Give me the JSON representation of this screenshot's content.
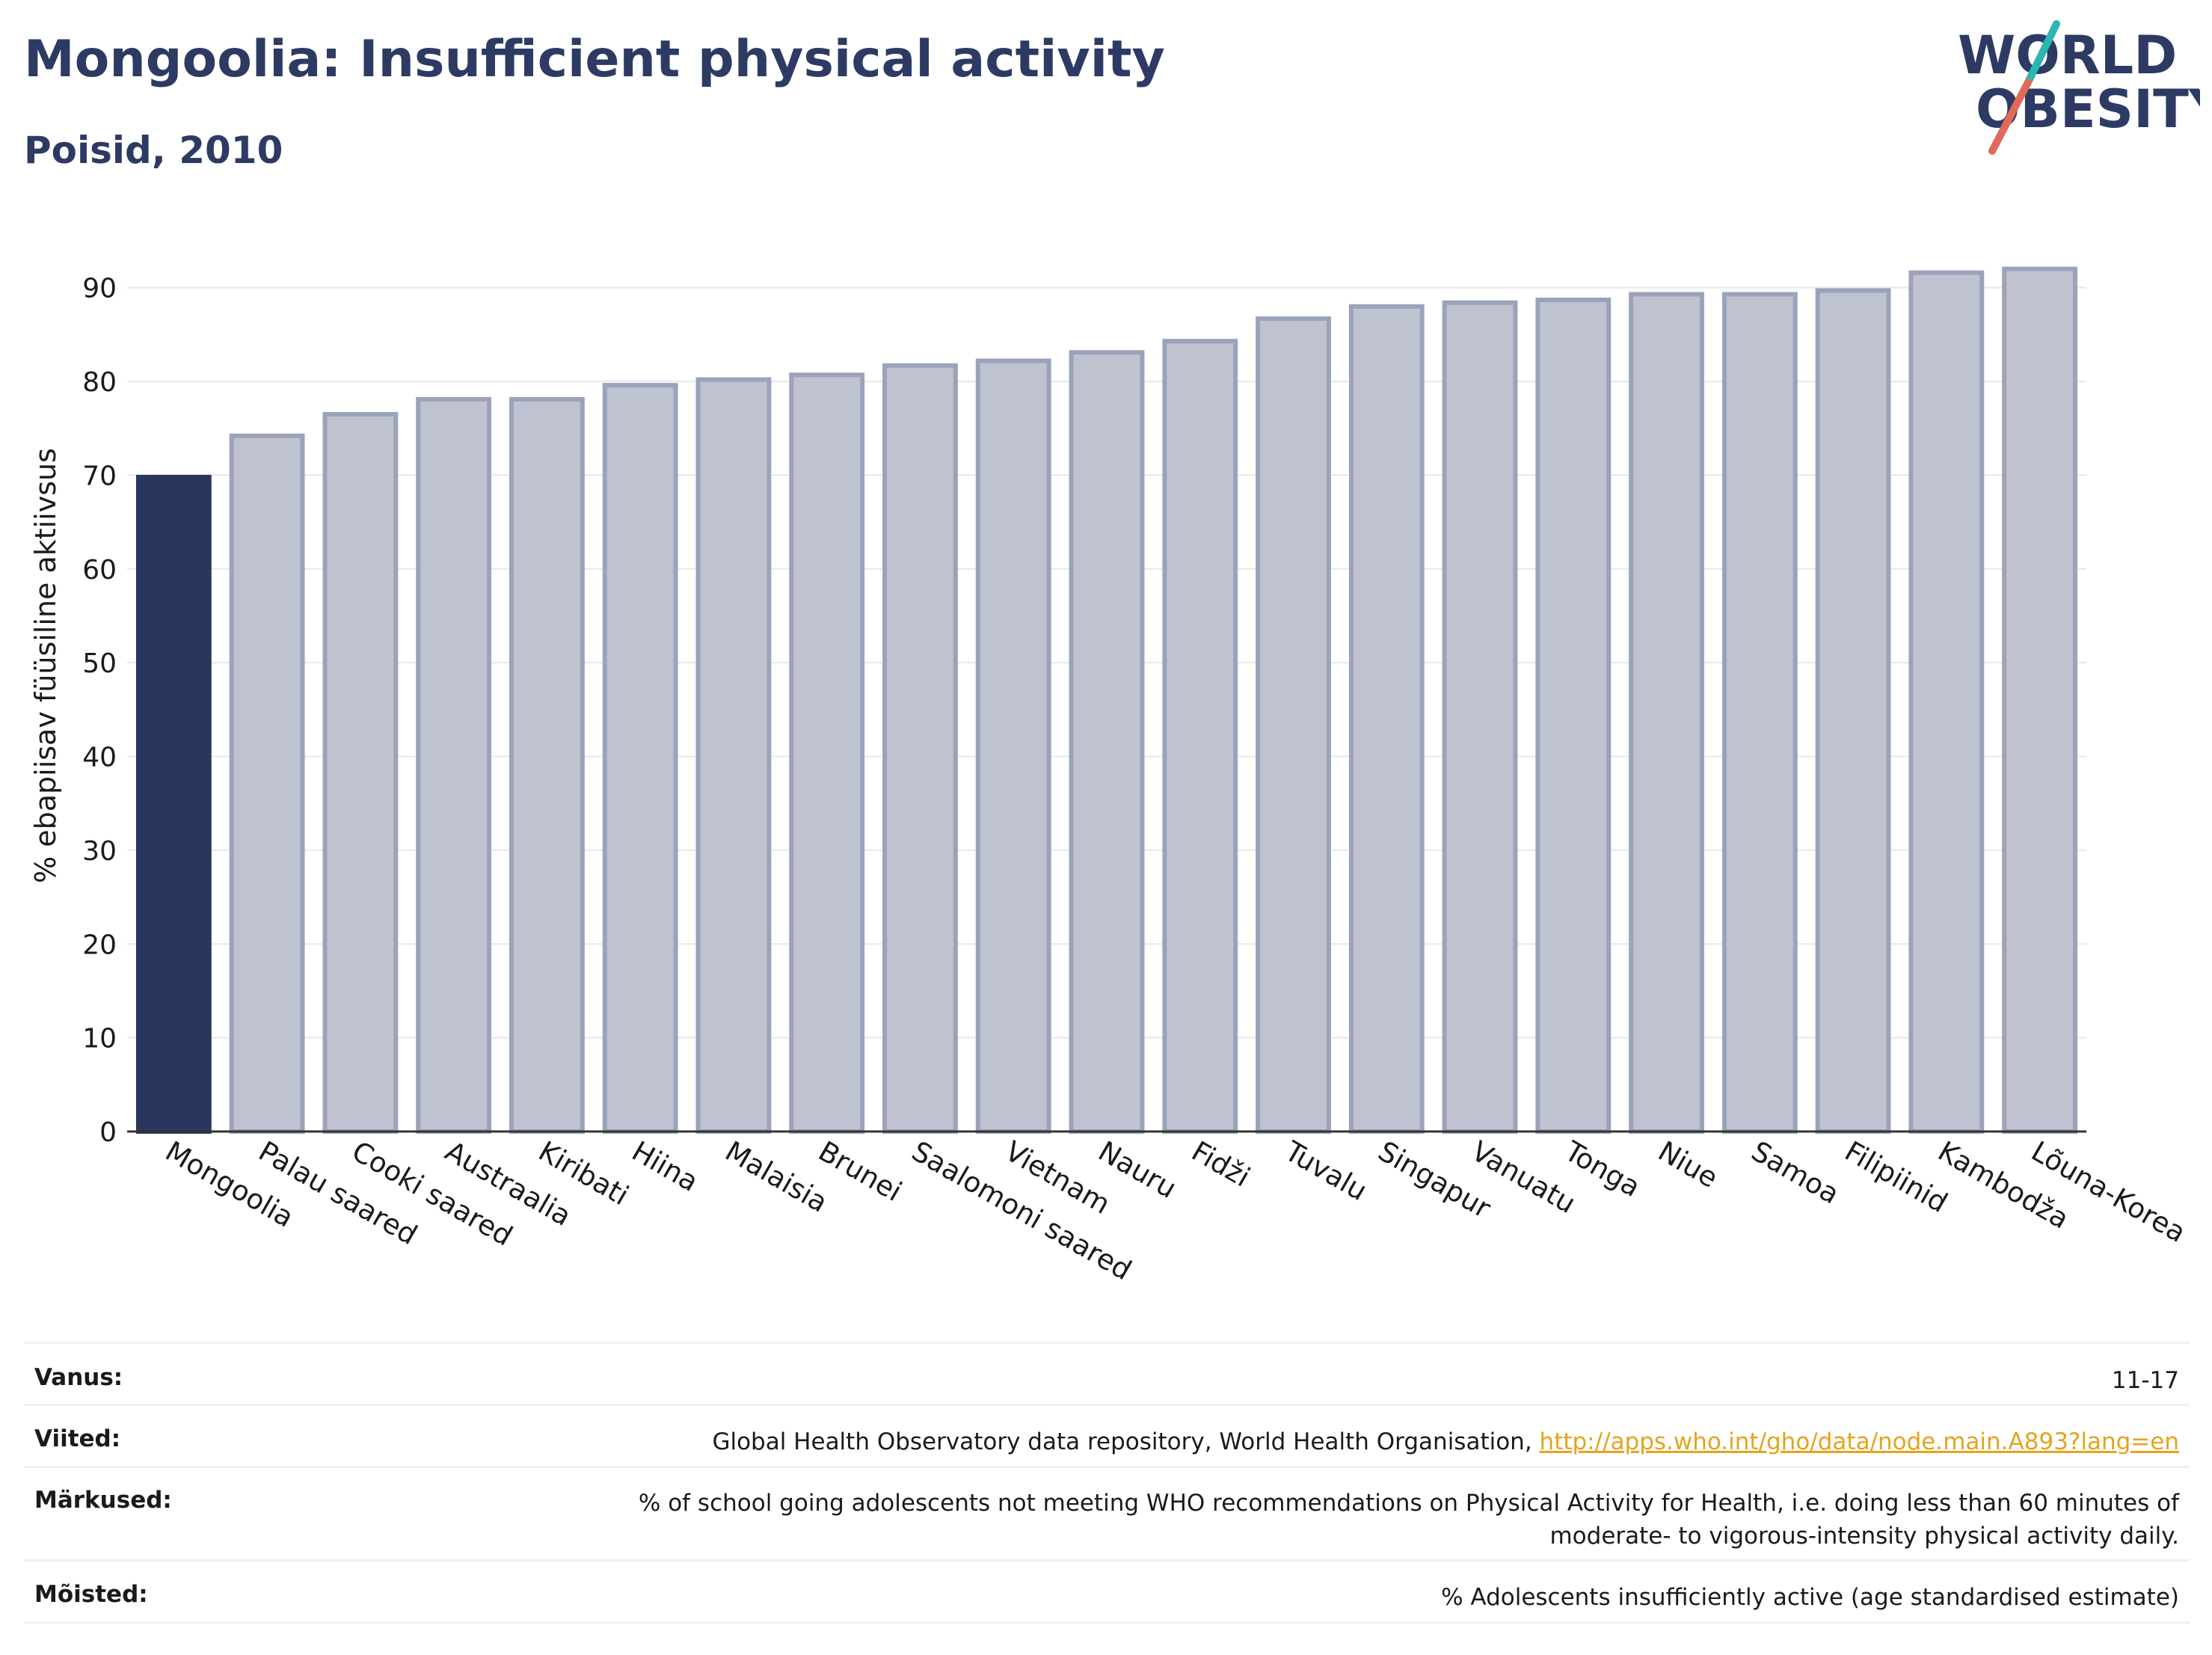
{
  "header": {
    "title": "Mongoolia: Insufficient physical activity",
    "subtitle": "Poisid, 2010"
  },
  "logo": {
    "line1": "WORLD",
    "line2": "OBESITY",
    "colors": {
      "text": "#2d3a63",
      "slash_teal": "#2bb5b3",
      "slash_red": "#e06a5a"
    }
  },
  "chart_data": {
    "type": "bar",
    "title": "",
    "ylabel": "% ebapiisav füüsiline aktiivsus",
    "xlabel": "",
    "ylim": [
      0,
      95
    ],
    "yticks": [
      0,
      10,
      20,
      30,
      40,
      50,
      60,
      70,
      80,
      90
    ],
    "grid": true,
    "categories": [
      "Mongoolia",
      "Palau saared",
      "Cooki saared",
      "Austraalia",
      "Kiribati",
      "Hiina",
      "Malaisia",
      "Brunei",
      "Saalomoni saared",
      "Vietnam",
      "Nauru",
      "Fidži",
      "Tuvalu",
      "Singapur",
      "Vanuatu",
      "Tonga",
      "Niue",
      "Samoa",
      "Filipiinid",
      "Kambodža",
      "Lõuna-Korea"
    ],
    "values": [
      69.8,
      74.2,
      76.5,
      78.1,
      78.1,
      79.6,
      80.2,
      80.7,
      81.7,
      82.2,
      83.1,
      84.3,
      86.7,
      88.0,
      88.4,
      88.7,
      89.3,
      89.3,
      89.7,
      91.6,
      92.0
    ],
    "highlight_index": 0,
    "colors": {
      "highlight": "#2b365e",
      "bar_fill": "#bfc3d0",
      "bar_stroke": "#9ba2bb",
      "grid": "#e6e8ee",
      "axis": "#333333"
    }
  },
  "meta": {
    "rows": [
      {
        "label": "Vanus:",
        "value": "11-17"
      },
      {
        "label": "Viited:",
        "value": "Global Health Observatory data repository, World Health Organisation, ",
        "link": "http://apps.who.int/gho/data/node.main.A893?lang=en"
      },
      {
        "label": "Märkused:",
        "value": "% of school going adolescents not meeting WHO recommendations on Physical Activity for Health, i.e. doing less than 60 minutes of",
        "value2": "moderate- to vigorous-intensity physical activity daily."
      },
      {
        "label": "Mõisted:",
        "value": "% Adolescents insufficiently active (age standardised estimate)"
      }
    ]
  }
}
